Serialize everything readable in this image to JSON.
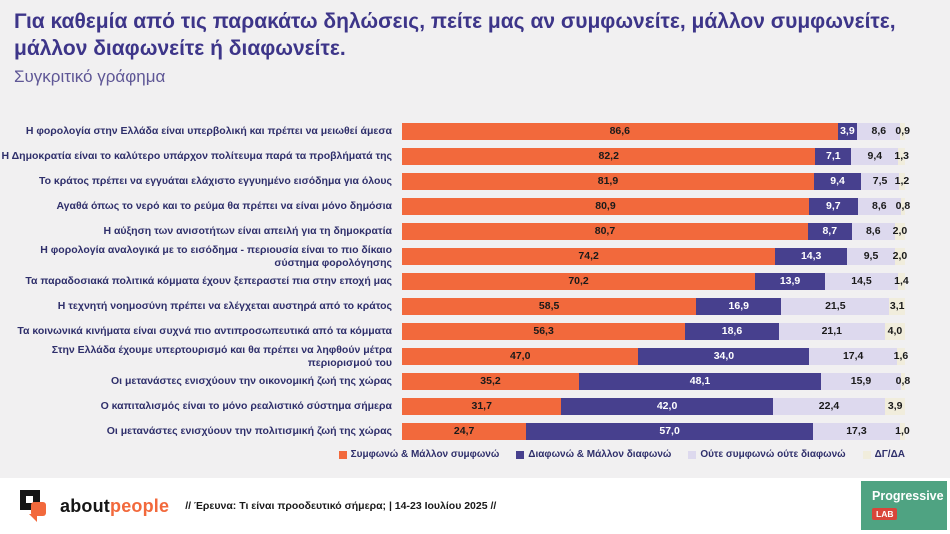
{
  "header": {
    "title": "Για καθεμία από τις παρακάτω δηλώσεις, πείτε μας αν συμφωνείτε, μάλλον συμφωνείτε, μάλλον διαφωνείτε ή διαφωνείτε.",
    "subtitle": "Συγκριτικό γράφημα"
  },
  "chart_data": {
    "type": "bar",
    "orientation": "horizontal-stacked",
    "unit": "%",
    "xlim": [
      0,
      100
    ],
    "value_decimal_separator": ",",
    "legend_position": "bottom",
    "grid": false,
    "categories": [
      "Η φορολογία στην Ελλάδα είναι υπερβολική και πρέπει να μειωθεί άμεσα",
      "Η Δημοκρατία είναι το καλύτερο υπάρχον πολίτευμα παρά τα προβλήματά της",
      "Το κράτος πρέπει να εγγυάται ελάχιστο εγγυημένο εισόδημα για όλους",
      "Αγαθά όπως το νερό και το ρεύμα θα πρέπει να είναι μόνο δημόσια",
      "Η αύξηση των ανισοτήτων είναι απειλή για τη δημοκρατία",
      "Η φορολογία αναλογικά με το εισόδημα - περιουσία είναι το πιο δίκαιο σύστημα φορολόγησης",
      "Τα παραδοσιακά πολιτικά κόμματα έχουν ξεπεραστεί πια στην εποχή μας",
      "Η τεχνητή νοημοσύνη πρέπει να ελέγχεται αυστηρά από το κράτος",
      "Τα κοινωνικά κινήματα είναι συχνά πιο αντιπροσωπευτικά από τα κόμματα",
      "Στην Ελλάδα έχουμε υπερτουρισμό και θα πρέπει να ληφθούν μέτρα περιορισμού του",
      "Οι μετανάστες ενισχύουν την οικονομική ζωή της χώρας",
      "Ο καπιταλισμός είναι το μόνο ρεαλιστικό σύστημα σήμερα",
      "Οι μετανάστες ενισχύουν την πολιτισμική ζωή της χώρας"
    ],
    "series": [
      {
        "name": "Συμφωνώ & Μάλλον συμφωνώ",
        "color": "#F2693C",
        "label_color": "#1A1A1A",
        "values": [
          86.6,
          82.2,
          81.9,
          80.9,
          80.7,
          74.2,
          70.2,
          58.5,
          56.3,
          47.0,
          35.2,
          31.7,
          24.7
        ]
      },
      {
        "name": "Διαφωνώ & Μάλλον διαφωνώ",
        "color": "#47408E",
        "label_color": "#FFFFFF",
        "values": [
          3.9,
          7.1,
          9.4,
          9.7,
          8.7,
          14.3,
          13.9,
          16.9,
          18.6,
          34.0,
          48.1,
          42.0,
          57.0
        ]
      },
      {
        "name": "Ούτε συμφωνώ ούτε διαφωνώ",
        "color": "#DDD9EE",
        "label_color": "#1A1A1A",
        "values": [
          8.6,
          9.4,
          7.5,
          8.6,
          8.6,
          9.5,
          14.5,
          21.5,
          21.1,
          17.4,
          15.9,
          22.4,
          17.3
        ]
      },
      {
        "name": "ΔΓ/ΔΑ",
        "color": "#F1EDDC",
        "label_color": "#1A1A1A",
        "values": [
          0.9,
          1.3,
          1.2,
          0.8,
          2.0,
          2.0,
          1.4,
          3.1,
          4.0,
          1.6,
          0.8,
          3.9,
          1.0
        ]
      }
    ]
  },
  "footer": {
    "logo_text_black": "about",
    "logo_text_orange": "people",
    "source": "// Έρευνα: Τι είναι προοδευτικό σήμερα; | 14-23 Ιουλίου 2025 //",
    "brand_name": "Progressive",
    "brand_sub": "LAB"
  },
  "colors": {
    "background": "#F1F0F1",
    "title": "#3D3589",
    "row_label": "#2F2F6B",
    "agree": "#F2693C",
    "disagree": "#47408E",
    "neither": "#DDD9EE",
    "dk_na": "#F1EDDC",
    "brand_green": "#4FA382",
    "brand_red": "#D9453A"
  }
}
